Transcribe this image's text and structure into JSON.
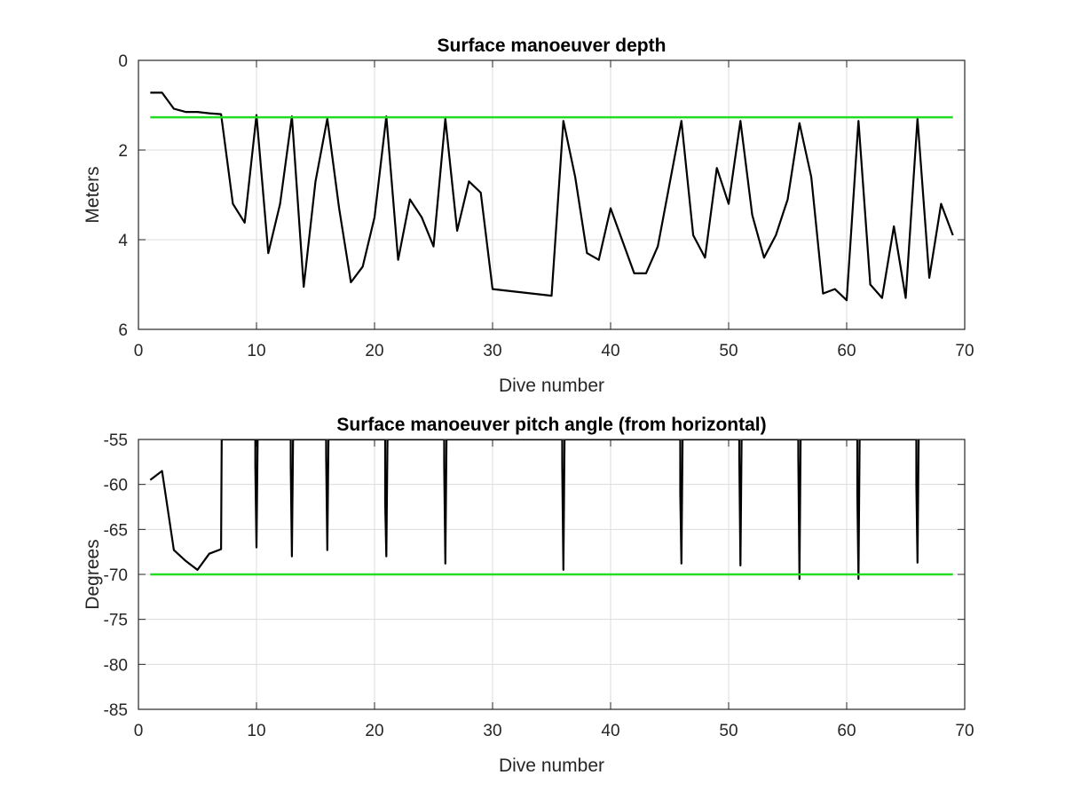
{
  "chart_data": [
    {
      "type": "line",
      "title": "Surface manoeuver depth",
      "xlabel": "Dive number",
      "ylabel": "Meters",
      "xlim": [
        0,
        70
      ],
      "ylim": [
        0,
        6
      ],
      "y_reversed": true,
      "xticks": [
        0,
        10,
        20,
        30,
        40,
        50,
        60,
        70
      ],
      "yticks": [
        0,
        2,
        4,
        6
      ],
      "grid": true,
      "series": [
        {
          "color": "#000000",
          "points": [
            [
              1,
              0.72
            ],
            [
              2,
              0.72
            ],
            [
              3,
              1.08
            ],
            [
              4,
              1.15
            ],
            [
              5,
              1.15
            ],
            [
              6,
              1.18
            ],
            [
              7,
              1.2
            ],
            [
              8,
              3.2
            ],
            [
              9,
              3.62
            ],
            [
              10,
              1.22
            ],
            [
              11,
              4.3
            ],
            [
              12,
              3.2
            ],
            [
              13,
              1.25
            ],
            [
              14,
              5.05
            ],
            [
              15,
              2.7
            ],
            [
              16,
              1.3
            ],
            [
              17,
              3.3
            ],
            [
              18,
              4.95
            ],
            [
              19,
              4.6
            ],
            [
              20,
              3.5
            ],
            [
              21,
              1.25
            ],
            [
              22,
              4.45
            ],
            [
              23,
              3.1
            ],
            [
              24,
              3.5
            ],
            [
              25,
              4.15
            ],
            [
              26,
              1.3
            ],
            [
              27,
              3.8
            ],
            [
              28,
              2.7
            ],
            [
              29,
              2.95
            ],
            [
              30,
              5.1
            ],
            [
              35,
              5.25
            ],
            [
              36,
              1.35
            ],
            [
              37,
              2.6
            ],
            [
              38,
              4.3
            ],
            [
              39,
              4.45
            ],
            [
              40,
              3.3
            ],
            [
              42,
              4.75
            ],
            [
              43,
              4.75
            ],
            [
              44,
              4.15
            ],
            [
              46,
              1.35
            ],
            [
              47,
              3.9
            ],
            [
              48,
              4.4
            ],
            [
              49,
              2.4
            ],
            [
              50,
              3.2
            ],
            [
              51,
              1.35
            ],
            [
              52,
              3.45
            ],
            [
              53,
              4.4
            ],
            [
              54,
              3.9
            ],
            [
              55,
              3.1
            ],
            [
              56,
              1.4
            ],
            [
              57,
              2.6
            ],
            [
              58,
              5.2
            ],
            [
              59,
              5.1
            ],
            [
              60,
              5.35
            ],
            [
              61,
              1.35
            ],
            [
              62,
              5.0
            ],
            [
              63,
              5.3
            ],
            [
              64,
              3.7
            ],
            [
              65,
              5.3
            ],
            [
              66,
              1.3
            ],
            [
              67,
              4.85
            ],
            [
              68,
              3.2
            ],
            [
              69,
              3.9
            ]
          ]
        },
        {
          "color": "#22dd22",
          "points": [
            [
              1,
              1.27
            ],
            [
              69,
              1.27
            ]
          ]
        }
      ]
    },
    {
      "type": "line",
      "title": "Surface manoeuver pitch angle (from horizontal)",
      "xlabel": "Dive number",
      "ylabel": "Degrees",
      "xlim": [
        0,
        70
      ],
      "ylim": [
        -85,
        -55
      ],
      "xticks": [
        0,
        10,
        20,
        30,
        40,
        50,
        60,
        70
      ],
      "yticks": [
        -55,
        -60,
        -65,
        -70,
        -75,
        -80,
        -85
      ],
      "grid": true,
      "series": [
        {
          "color": "#000000",
          "points": [
            [
              1,
              -59.5
            ],
            [
              2,
              -58.5
            ],
            [
              3,
              -67.3
            ],
            [
              4,
              -68.5
            ],
            [
              5,
              -69.5
            ],
            [
              6,
              -67.7
            ],
            [
              7,
              -67.2
            ],
            [
              7.05,
              -55
            ],
            [
              9.9,
              -55
            ],
            [
              9.9,
              -58
            ],
            [
              10,
              -67
            ],
            [
              10.1,
              -55
            ],
            [
              12.9,
              -55
            ],
            [
              12.9,
              -58
            ],
            [
              13,
              -68
            ],
            [
              13.1,
              -55
            ],
            [
              15.9,
              -55
            ],
            [
              15.9,
              -57
            ],
            [
              16,
              -67.3
            ],
            [
              16.1,
              -55
            ],
            [
              20.9,
              -55
            ],
            [
              20.9,
              -62
            ],
            [
              21,
              -68
            ],
            [
              21.1,
              -55
            ],
            [
              25.9,
              -55
            ],
            [
              25.9,
              -58
            ],
            [
              26,
              -68.8
            ],
            [
              26.1,
              -55
            ],
            [
              35.9,
              -55
            ],
            [
              35.9,
              -58
            ],
            [
              36,
              -69.5
            ],
            [
              36.1,
              -55
            ],
            [
              45.9,
              -55
            ],
            [
              45.9,
              -61
            ],
            [
              46,
              -68.8
            ],
            [
              46.1,
              -55
            ],
            [
              50.9,
              -55
            ],
            [
              50.9,
              -57
            ],
            [
              51,
              -69
            ],
            [
              51.1,
              -55
            ],
            [
              55.9,
              -55
            ],
            [
              55.9,
              -57
            ],
            [
              56,
              -70.5
            ],
            [
              56.1,
              -55
            ],
            [
              60.9,
              -55
            ],
            [
              60.9,
              -61
            ],
            [
              61,
              -70.5
            ],
            [
              61.1,
              -55
            ],
            [
              65.9,
              -55
            ],
            [
              65.9,
              -60
            ],
            [
              66,
              -68.7
            ],
            [
              66.1,
              -55
            ]
          ]
        },
        {
          "color": "#22dd22",
          "points": [
            [
              1,
              -70
            ],
            [
              69,
              -70
            ]
          ]
        }
      ]
    }
  ]
}
